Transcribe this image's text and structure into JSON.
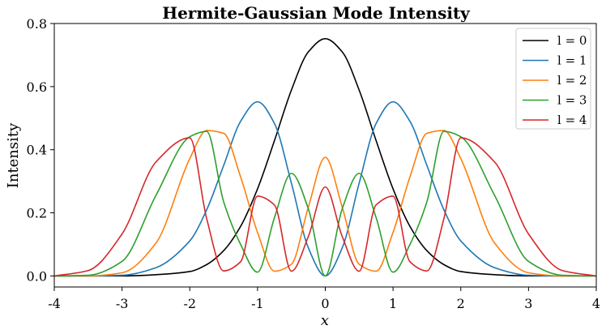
{
  "chart_data": {
    "type": "line",
    "title": "Hermite-Gaussian Mode Intensity",
    "xlabel": "x",
    "ylabel": "Intensity",
    "xlim": [
      -4,
      4
    ],
    "ylim": [
      -0.035,
      0.8
    ],
    "xticks": [
      -4,
      -3,
      -2,
      -1,
      0,
      1,
      2,
      3,
      4
    ],
    "xtick_labels": [
      "-4",
      "-3",
      "-2",
      "-1",
      "0",
      "1",
      "2",
      "3",
      "4"
    ],
    "yticks": [
      0.0,
      0.2,
      0.4,
      0.6,
      0.8
    ],
    "ytick_labels": [
      "0.0",
      "0.2",
      "0.4",
      "0.6",
      "0.8"
    ],
    "grid": false,
    "legend_position": "top-right",
    "x": [
      -4.0,
      -3.5,
      -3.0,
      -2.5,
      -2.0,
      -1.75,
      -1.5,
      -1.25,
      -1.0,
      -0.75,
      -0.5,
      -0.25,
      0.0,
      0.25,
      0.5,
      0.75,
      1.0,
      1.25,
      1.5,
      1.75,
      2.0,
      2.5,
      3.0,
      3.5,
      4.0
    ],
    "series": [
      {
        "name": "l = 0",
        "color": "#000000",
        "values": [
          0.0,
          0.0,
          0.0,
          0.004,
          0.014,
          0.036,
          0.08,
          0.157,
          0.276,
          0.429,
          0.589,
          0.71,
          0.752,
          0.71,
          0.589,
          0.429,
          0.276,
          0.157,
          0.08,
          0.036,
          0.014,
          0.004,
          0.0,
          0.0,
          0.0
        ]
      },
      {
        "name": "l = 1",
        "color": "#1f77b4",
        "values": [
          0.0,
          0.0,
          0.002,
          0.026,
          0.111,
          0.21,
          0.35,
          0.49,
          0.552,
          0.483,
          0.294,
          0.089,
          0.0,
          0.089,
          0.294,
          0.483,
          0.552,
          0.49,
          0.35,
          0.21,
          0.111,
          0.026,
          0.002,
          0.0,
          0.0
        ]
      },
      {
        "name": "l = 2",
        "color": "#ff7f0e",
        "values": [
          0.0,
          0.0,
          0.01,
          0.104,
          0.372,
          0.461,
          0.452,
          0.314,
          0.138,
          0.015,
          0.037,
          0.218,
          0.376,
          0.218,
          0.037,
          0.015,
          0.138,
          0.314,
          0.452,
          0.461,
          0.372,
          0.104,
          0.01,
          0.0,
          0.0
        ]
      },
      {
        "name": "l = 3",
        "color": "#2ca02c",
        "values": [
          0.0,
          0.002,
          0.046,
          0.255,
          0.441,
          0.458,
          0.235,
          0.1,
          0.012,
          0.185,
          0.325,
          0.213,
          0.0,
          0.213,
          0.325,
          0.185,
          0.012,
          0.1,
          0.235,
          0.458,
          0.441,
          0.255,
          0.046,
          0.002,
          0.0
        ]
      },
      {
        "name": "l = 4",
        "color": "#d62728",
        "values": [
          0.0,
          0.017,
          0.133,
          0.361,
          0.438,
          0.181,
          0.016,
          0.045,
          0.253,
          0.225,
          0.015,
          0.125,
          0.282,
          0.125,
          0.015,
          0.225,
          0.253,
          0.045,
          0.016,
          0.181,
          0.438,
          0.361,
          0.133,
          0.017,
          0.0
        ]
      }
    ]
  }
}
